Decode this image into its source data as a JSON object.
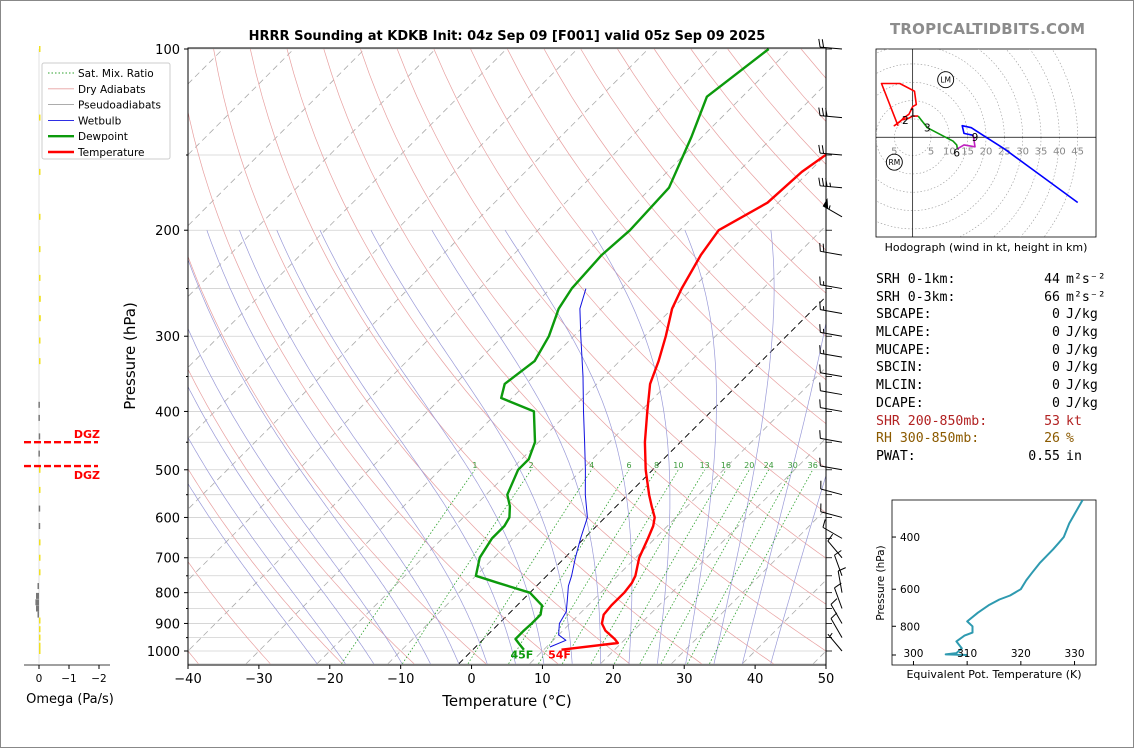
{
  "brand": "TROPICALTIDBITS.COM",
  "chart_data": [
    {
      "type": "skew-t",
      "title": "HRRR Sounding at KDKB Init: 04z Sep 09 [F001] valid 05z Sep 09 2025",
      "xlabel": "Temperature (°C)",
      "ylabel": "Pressure (hPa)",
      "xlim": [
        -40,
        50
      ],
      "ylim": [
        1050,
        100
      ],
      "y_scale": "log",
      "skew": "45°",
      "grid": true,
      "legend_placement": "top-left",
      "x_ticks": [
        -40,
        -30,
        -20,
        -10,
        0,
        10,
        20,
        30,
        40,
        50
      ],
      "x_tick_labels": [
        "−40",
        "−30",
        "−20",
        "−10",
        "0",
        "10",
        "20",
        "30",
        "40",
        "50"
      ],
      "y_ticks": [
        100,
        200,
        300,
        400,
        500,
        600,
        700,
        800,
        900,
        1000
      ],
      "y_tick_labels": [
        "100",
        "200",
        "300",
        "400",
        "500",
        "600",
        "700",
        "800",
        "900",
        "1000"
      ],
      "legend": [
        {
          "name": "Sat. Mix. Ratio",
          "color": "#2ca02c",
          "style": "dotted"
        },
        {
          "name": "Dry Adiabats",
          "color": "#e8a0a0",
          "style": "solid"
        },
        {
          "name": "Pseudoadiabats",
          "color": "#a0a0a0",
          "style": "solid"
        },
        {
          "name": "Wetbulb",
          "color": "#1010e0",
          "style": "solid"
        },
        {
          "name": "Dewpoint",
          "color": "#0c9a0c",
          "style": "solid"
        },
        {
          "name": "Temperature",
          "color": "#ff0000",
          "style": "solid"
        }
      ],
      "mixing_ratio_labels": [
        "1",
        "2",
        "4",
        "6",
        "8",
        "10",
        "13",
        "16",
        "20",
        "24",
        "30",
        "36"
      ],
      "mixing_ratio_values": [
        1,
        2,
        4,
        6,
        8,
        10,
        13,
        16,
        20,
        24,
        30,
        36
      ],
      "series": [
        {
          "key": "temperature",
          "color": "#ff0000",
          "p": [
            995,
            970,
            955,
            925,
            900,
            870,
            840,
            800,
            770,
            750,
            700,
            650,
            620,
            600,
            575,
            550,
            500,
            450,
            400,
            360,
            330,
            300,
            270,
            250,
            220,
            200,
            180,
            160,
            140,
            120,
            100
          ],
          "t": [
            12.5,
            19.5,
            18.5,
            16,
            14.5,
            13.5,
            13.3,
            13.3,
            13,
            12.5,
            10.5,
            9,
            8,
            7,
            5,
            3,
            -1,
            -5,
            -9,
            -12.5,
            -14.5,
            -17,
            -20,
            -21.5,
            -23.5,
            -24.5,
            -21.5,
            -21,
            -19,
            -17.5,
            -17
          ]
        },
        {
          "key": "dewpoint",
          "color": "#0c9a0c",
          "p": [
            995,
            970,
            955,
            925,
            900,
            870,
            840,
            800,
            770,
            750,
            700,
            650,
            620,
            600,
            575,
            550,
            500,
            480,
            450,
            400,
            380,
            360,
            330,
            300,
            270,
            250,
            220,
            200,
            170,
            140,
            120,
            100
          ],
          "t": [
            7.2,
            5.5,
            4.5,
            4.5,
            4.6,
            4.6,
            3.5,
            0,
            -6,
            -10,
            -12,
            -13,
            -13,
            -13.5,
            -15,
            -17,
            -19,
            -19,
            -20.5,
            -25,
            -31.5,
            -33,
            -32,
            -33.5,
            -36,
            -37,
            -37.5,
            -37,
            -37.5,
            -41.5,
            -45,
            -43
          ]
        },
        {
          "key": "wetbulb",
          "color": "#1010e0",
          "p": [
            985,
            960,
            940,
            900,
            860,
            820,
            780,
            750,
            700,
            650,
            600,
            550,
            500,
            450,
            400,
            350,
            300,
            270,
            250
          ],
          "t": [
            10.5,
            11.8,
            10,
            8.5,
            7.8,
            6.2,
            4.5,
            3.5,
            1.5,
            -0.5,
            -2.5,
            -6,
            -9.5,
            -13.5,
            -18,
            -23,
            -29,
            -33,
            -35
          ]
        }
      ],
      "surface_labels": {
        "dewpoint": "45F",
        "temperature": "54F"
      },
      "wind_barbs": [
        {
          "p": 100,
          "dir": 275,
          "kt": 20
        },
        {
          "p": 130,
          "dir": 275,
          "kt": 30
        },
        {
          "p": 150,
          "dir": 275,
          "kt": 20
        },
        {
          "p": 170,
          "dir": 275,
          "kt": 35
        },
        {
          "p": 190,
          "dir": 300,
          "kt": 55
        },
        {
          "p": 220,
          "dir": 280,
          "kt": 20
        },
        {
          "p": 250,
          "dir": 280,
          "kt": 15
        },
        {
          "p": 275,
          "dir": 280,
          "kt": 15
        },
        {
          "p": 300,
          "dir": 280,
          "kt": 15
        },
        {
          "p": 325,
          "dir": 280,
          "kt": 15
        },
        {
          "p": 350,
          "dir": 280,
          "kt": 10
        },
        {
          "p": 375,
          "dir": 280,
          "kt": 10
        },
        {
          "p": 400,
          "dir": 280,
          "kt": 10
        },
        {
          "p": 450,
          "dir": 280,
          "kt": 10
        },
        {
          "p": 500,
          "dir": 280,
          "kt": 10
        },
        {
          "p": 550,
          "dir": 285,
          "kt": 10
        },
        {
          "p": 600,
          "dir": 285,
          "kt": 10
        },
        {
          "p": 650,
          "dir": 300,
          "kt": 10
        },
        {
          "p": 700,
          "dir": 320,
          "kt": 10
        },
        {
          "p": 750,
          "dir": 340,
          "kt": 10
        },
        {
          "p": 800,
          "dir": 350,
          "kt": 10
        },
        {
          "p": 850,
          "dir": 340,
          "kt": 10
        },
        {
          "p": 900,
          "dir": 330,
          "kt": 10
        },
        {
          "p": 950,
          "dir": 330,
          "kt": 10
        },
        {
          "p": 1000,
          "dir": 320,
          "kt": 5
        }
      ]
    },
    {
      "type": "bar",
      "orientation": "horizontal",
      "xlabel": "Omega (Pa/s)",
      "xlim": [
        0.5,
        -2.3
      ],
      "x_ticks": [
        0,
        -1,
        -2
      ],
      "x_tick_labels": [
        "0",
        "−1",
        "−2"
      ],
      "dgz_label": "DGZ",
      "dgz_bounds_hpa": [
        450,
        493
      ],
      "p": [
        100,
        130,
        160,
        190,
        215,
        240,
        260,
        280,
        305,
        330,
        390,
        410,
        440,
        470,
        500,
        540,
        580,
        620,
        660,
        700,
        740,
        780,
        810,
        830,
        850,
        870,
        890,
        920,
        950,
        980,
        1000
      ],
      "values": [
        -0.03,
        -0.03,
        -0.04,
        -0.04,
        -0.05,
        -0.05,
        -0.06,
        -0.06,
        -0.05,
        -0.04,
        0.02,
        0.02,
        0.01,
        0.02,
        -0.02,
        -0.01,
        0.01,
        0.01,
        -0.01,
        -0.03,
        -0.03,
        0.05,
        0.1,
        0.12,
        0.1,
        0.05,
        -0.03,
        -0.04,
        -0.05,
        -0.04,
        -0.02
      ]
    },
    {
      "type": "line",
      "title": "Hodograph (wind in kt, height in km)",
      "xlim": [
        -10,
        50
      ],
      "ylim": [
        -26,
        23
      ],
      "ring_labels": [
        "5",
        "10",
        "15",
        "20",
        "25",
        "30",
        "35",
        "40",
        "45"
      ],
      "rings": [
        5,
        10,
        15,
        20,
        25,
        30,
        35,
        40,
        45
      ],
      "ring_label_y": -3.5,
      "markers": [
        {
          "label": "LM",
          "u": 9,
          "v": 15
        },
        {
          "label": "RM",
          "u": -5,
          "v": -6.5
        }
      ],
      "height_labels": [
        {
          "label": "1",
          "u": 0,
          "v": 6.5
        },
        {
          "label": "2",
          "u": -2,
          "v": 4.5
        },
        {
          "label": "3",
          "u": 4,
          "v": 2.5
        },
        {
          "label": "6",
          "u": 12,
          "v": -4
        },
        {
          "label": "9",
          "u": 17,
          "v": 0
        }
      ],
      "segments": [
        {
          "color": "#ff0000",
          "u": [
            -4,
            -8.5,
            -3.5,
            0.5,
            1,
            0,
            -1,
            -2.5,
            -3.5,
            -5,
            -3,
            -1,
            0,
            1.5
          ],
          "v": [
            3,
            14,
            14,
            12,
            8.5,
            8,
            6,
            5,
            4,
            3,
            4.5,
            5,
            5.5,
            5.5
          ]
        },
        {
          "color": "#0c9a0c",
          "u": [
            1.5,
            4,
            7,
            10,
            11,
            12,
            12.2
          ],
          "v": [
            5.5,
            2.5,
            1,
            -0.5,
            -1,
            -2,
            -3
          ]
        },
        {
          "color": "#c020c0",
          "u": [
            12.2,
            14,
            17,
            16.5
          ],
          "v": [
            -3,
            -2,
            -2.5,
            0.5
          ]
        },
        {
          "color": "#0000ff",
          "u": [
            16.5,
            14,
            13.5,
            16,
            20,
            25,
            35,
            45
          ],
          "v": [
            0.5,
            1,
            3,
            2.5,
            0,
            -3,
            -10,
            -17
          ]
        }
      ]
    },
    {
      "type": "line",
      "xlabel": "Equivalent Pot. Temperature (K)",
      "ylabel": "Pressure (hPa)",
      "xlim": [
        296,
        334
      ],
      "ylim": [
        1000,
        300
      ],
      "x_ticks": [
        300,
        310,
        320,
        330
      ],
      "x_tick_labels": [
        "300",
        "310",
        "320",
        "330"
      ],
      "y_ticks": [
        400,
        600,
        800,
        1000
      ],
      "y_tick_labels": [
        "400",
        "600",
        "800",
        ""
      ],
      "color": "#2e9ab0",
      "theta_e": [
        310,
        306,
        307,
        308,
        309,
        308,
        309.5,
        311,
        311,
        310,
        312,
        314,
        316,
        318,
        320,
        321,
        322,
        323.5,
        326,
        327,
        328,
        329,
        331.5
      ],
      "p": [
        1000,
        995,
        990,
        985,
        950,
        900,
        860,
        840,
        800,
        770,
        720,
        680,
        650,
        630,
        600,
        560,
        530,
        490,
        440,
        420,
        400,
        360,
        300
      ]
    }
  ],
  "stats": [
    {
      "label": "SRH 0-1km:",
      "value": "44",
      "unit": "m²s⁻²",
      "color": "#000000"
    },
    {
      "label": "SRH 0-3km:",
      "value": "66",
      "unit": "m²s⁻²",
      "color": "#000000"
    },
    {
      "label": "SBCAPE:",
      "value": "0",
      "unit": "J/kg",
      "color": "#000000"
    },
    {
      "label": "MLCAPE:",
      "value": "0",
      "unit": "J/kg",
      "color": "#000000"
    },
    {
      "label": "MUCAPE:",
      "value": "0",
      "unit": "J/kg",
      "color": "#000000"
    },
    {
      "label": "SBCIN:",
      "value": "0",
      "unit": "J/kg",
      "color": "#000000"
    },
    {
      "label": "MLCIN:",
      "value": "0",
      "unit": "J/kg",
      "color": "#000000"
    },
    {
      "label": "DCAPE:",
      "value": "0",
      "unit": "J/kg",
      "color": "#000000"
    },
    {
      "label": "SHR 200-850mb:",
      "value": "53",
      "unit": "kt",
      "color": "#b22222"
    },
    {
      "label": "RH 300-850mb:",
      "value": "26",
      "unit": "%",
      "color": "#8b5a00"
    },
    {
      "label": "PWAT:",
      "value": "0.55",
      "unit": "in",
      "color": "#000000"
    }
  ]
}
